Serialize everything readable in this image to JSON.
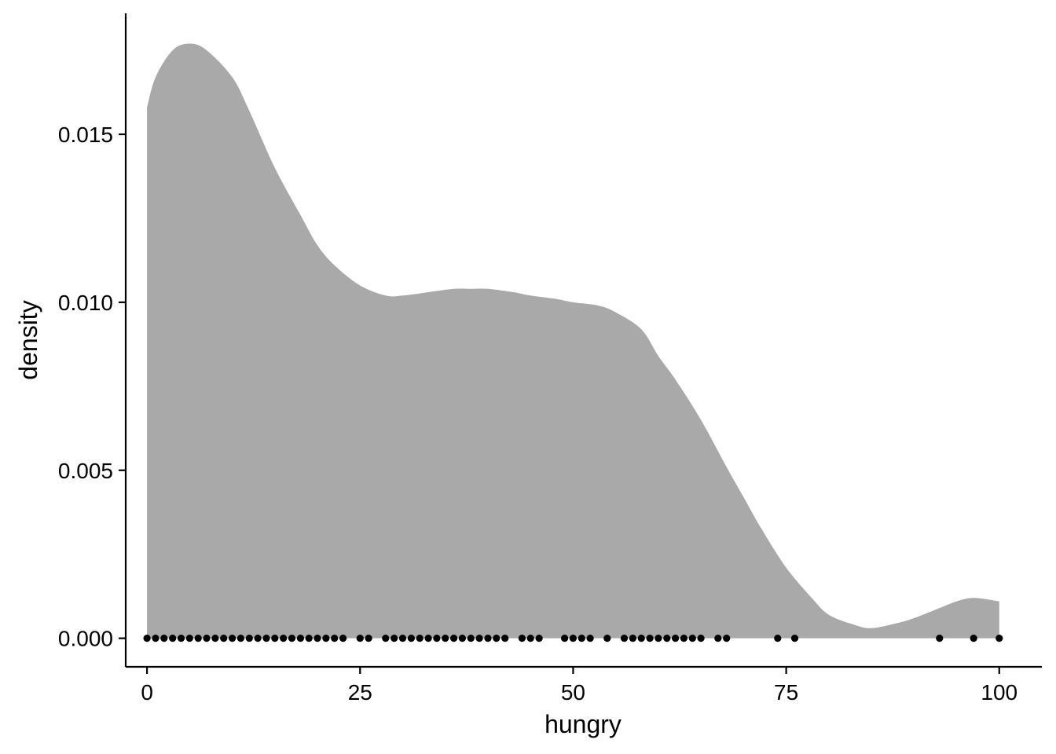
{
  "chart_data": {
    "type": "area",
    "title": "",
    "xlabel": "hungry",
    "ylabel": "density",
    "xlim": [
      -2.5,
      105
    ],
    "ylim": [
      -0.00085,
      0.0186
    ],
    "x_ticks": [
      0,
      25,
      50,
      75,
      100
    ],
    "x_tick_labels": [
      "0",
      "25",
      "50",
      "75",
      "100"
    ],
    "y_ticks": [
      0.0,
      0.005,
      0.01,
      0.015
    ],
    "y_tick_labels": [
      "0.000",
      "0.005",
      "0.010",
      "0.015"
    ],
    "grid": false,
    "legend": "none",
    "fill_color": "#a9a9a9",
    "point_color": "#000000",
    "density_curve": {
      "x": [
        0,
        1,
        3,
        5,
        7,
        10,
        12,
        15,
        18,
        20,
        22,
        25,
        28,
        30,
        33,
        36,
        38,
        40,
        43,
        45,
        48,
        50,
        53,
        55,
        58,
        60,
        62,
        65,
        68,
        70,
        72,
        75,
        78,
        80,
        83,
        85,
        88,
        90,
        93,
        95,
        97,
        100
      ],
      "y": [
        0.0158,
        0.0167,
        0.0175,
        0.0177,
        0.0175,
        0.0167,
        0.0157,
        0.014,
        0.0126,
        0.0117,
        0.0111,
        0.0105,
        0.0102,
        0.0102,
        0.0103,
        0.0104,
        0.0104,
        0.0104,
        0.0103,
        0.0102,
        0.0101,
        0.01,
        0.0099,
        0.0097,
        0.0092,
        0.0084,
        0.0077,
        0.0065,
        0.0051,
        0.0042,
        0.0033,
        0.0021,
        0.0012,
        0.0007,
        0.0004,
        0.0003,
        0.00045,
        0.0006,
        0.0009,
        0.0011,
        0.0012,
        0.0011
      ]
    },
    "rug_points_x": [
      0,
      1,
      2,
      3,
      4,
      5,
      6,
      7,
      8,
      9,
      10,
      11,
      12,
      13,
      14,
      15,
      16,
      17,
      18,
      19,
      20,
      21,
      22,
      23,
      25,
      26,
      28,
      29,
      30,
      31,
      32,
      33,
      34,
      35,
      36,
      37,
      38,
      39,
      40,
      41,
      42,
      44,
      45,
      46,
      49,
      50,
      51,
      52,
      54,
      56,
      57,
      58,
      59,
      60,
      61,
      62,
      63,
      64,
      65,
      67,
      68,
      74,
      76,
      93,
      97,
      100
    ]
  }
}
